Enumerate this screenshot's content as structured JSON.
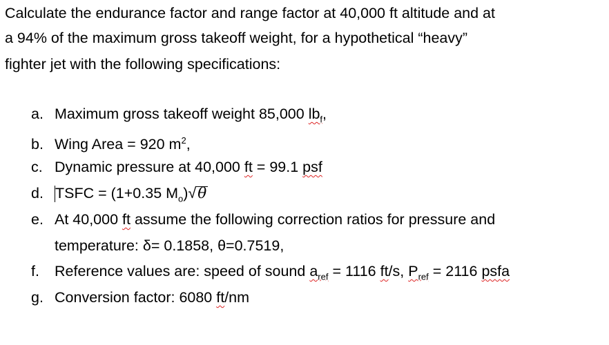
{
  "intro": {
    "line1": "Calculate the endurance factor and range factor at 40,000 ft altitude and at",
    "line2": "a 94% of the maximum gross takeoff weight, for a hypothetical “heavy”",
    "line3": "fighter jet with the following specifications:"
  },
  "items": [
    {
      "label": "a.",
      "text": "Maximum gross takeoff weight 85,000 ",
      "unit": "lb",
      "sub": "f",
      "tail": ","
    },
    {
      "label": "b.",
      "text": "Wing Area = 920 m",
      "sup": "2",
      "tail": ","
    },
    {
      "label": "c.",
      "text": "Dynamic pressure at 40,000 ",
      "ft": "ft",
      "mid": " = 99.1 ",
      "unit": "psf"
    },
    {
      "label": "d.",
      "text": "TSFC = (1+0.35 M",
      "sub": "o",
      "mid": ")√",
      "theta": "θ"
    },
    {
      "label": "e.",
      "line1": "At 40,000 ",
      "ft": "ft",
      "line1b": " assume the following correction ratios for pressure and",
      "line2": "temperature: δ= 0.1858, θ=0.7519,"
    },
    {
      "label": "f.",
      "text": "Reference values are: speed of sound ",
      "a": "a",
      "asub": "ref",
      "mid": " = 1116 ",
      "ft": "ft",
      "mid2": "/s, ",
      "p": "P",
      "psub": "ref",
      "mid3": " = 2116 ",
      "unit": "psfa"
    },
    {
      "label": "g.",
      "text": "Conversion factor: 6080 ",
      "ft": "ft",
      "tail": "/nm"
    }
  ]
}
